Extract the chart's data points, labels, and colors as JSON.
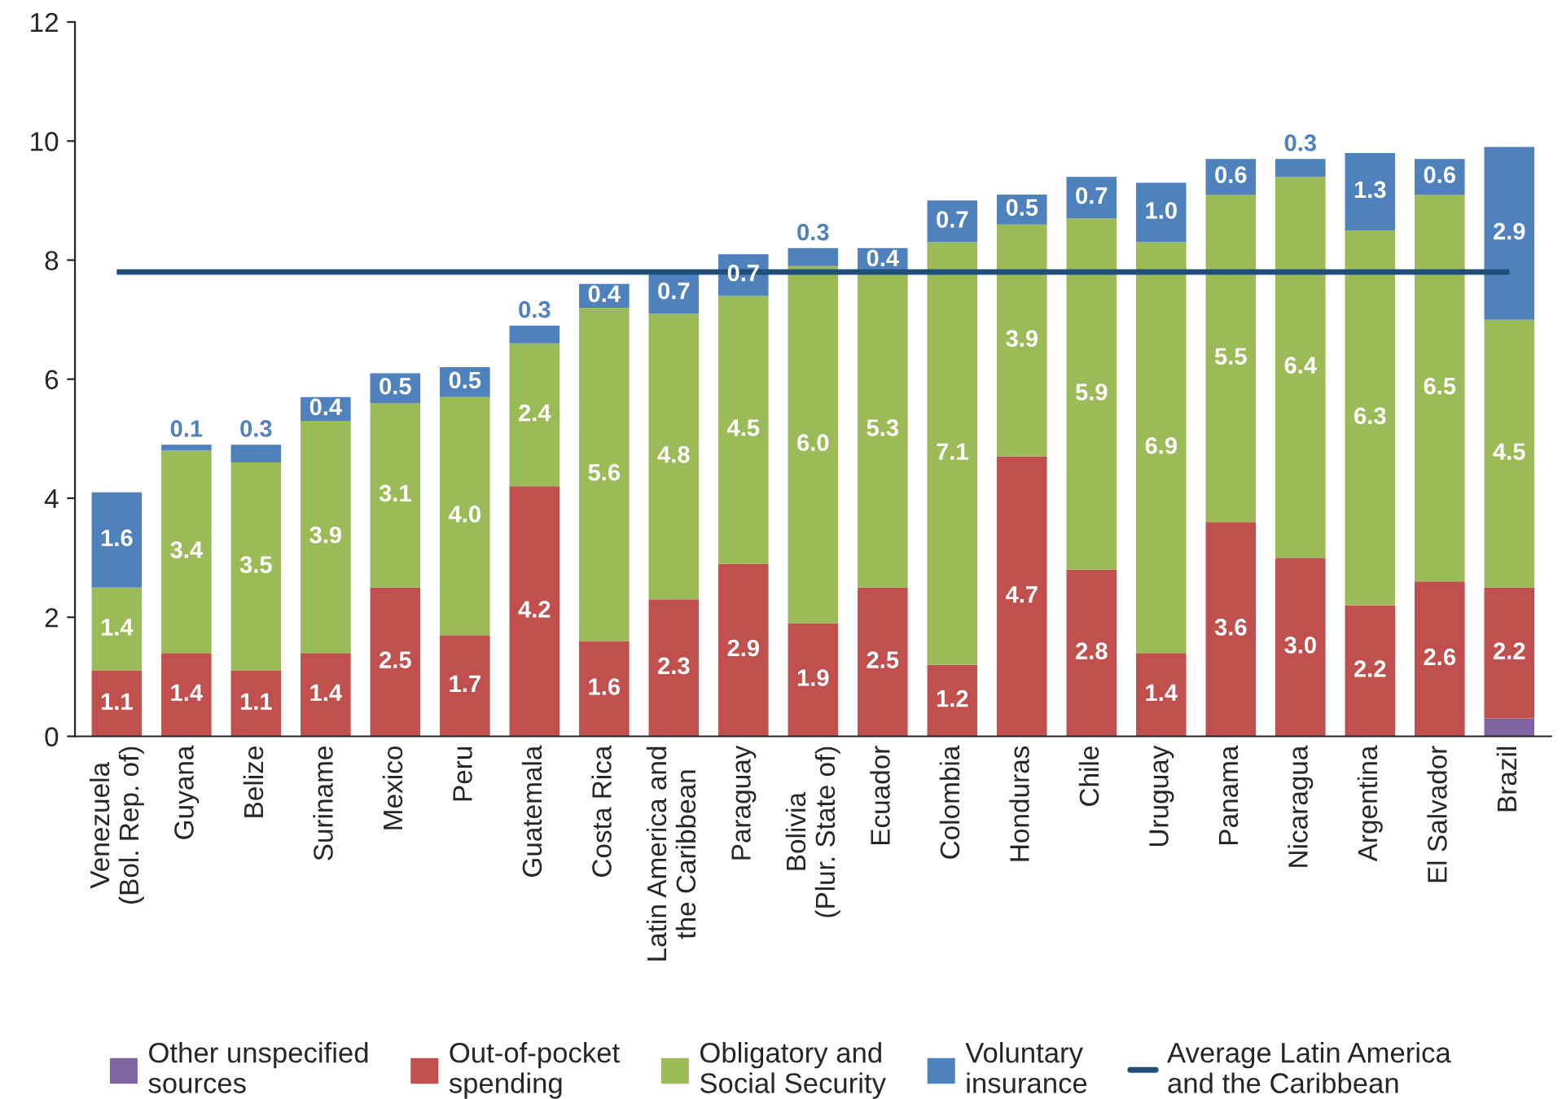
{
  "chart_data": {
    "type": "bar",
    "stacked": true,
    "categories": [
      "Venezuela\n(Bol. Rep. of)",
      "Guyana",
      "Belize",
      "Suriname",
      "Mexico",
      "Peru",
      "Guatemala",
      "Costa Rica",
      "Latin America and\nthe Caribbean",
      "Paraguay",
      "Bolivia\n(Plur. State of)",
      "Ecuador",
      "Colombia",
      "Honduras",
      "Chile",
      "Uruguay",
      "Panama",
      "Nicaragua",
      "Argentina",
      "El Salvador",
      "Brazil"
    ],
    "series": [
      {
        "name": "Other unspecified\nsources",
        "color": "#8064a2",
        "values": [
          null,
          null,
          null,
          null,
          null,
          null,
          null,
          null,
          null,
          null,
          null,
          null,
          null,
          null,
          null,
          null,
          null,
          null,
          null,
          null,
          0.3
        ],
        "value_labels": [
          null,
          null,
          null,
          null,
          null,
          null,
          null,
          null,
          null,
          null,
          null,
          null,
          null,
          null,
          null,
          null,
          null,
          null,
          null,
          null,
          null
        ]
      },
      {
        "name": "Out-of-pocket\nspending",
        "color": "#c0504d",
        "values": [
          1.1,
          1.4,
          1.1,
          1.4,
          2.5,
          1.7,
          4.2,
          1.6,
          2.3,
          2.9,
          1.9,
          2.5,
          1.2,
          4.7,
          2.8,
          1.4,
          3.6,
          3.0,
          2.2,
          2.6,
          2.2
        ],
        "value_labels": [
          "1.1",
          "1.4",
          "1.1",
          "1.4",
          "2.5",
          "1.7",
          "4.2",
          "1.6",
          "2.3",
          "2.9",
          "1.9",
          "2.5",
          "1.2",
          "4.7",
          "2.8",
          "1.4",
          "3.6",
          "3.0",
          "2.2",
          "2.6",
          "2.2"
        ]
      },
      {
        "name": "Obligatory and\nSocial Security",
        "color": "#9bbb59",
        "values": [
          1.4,
          3.4,
          3.5,
          3.9,
          3.1,
          4.0,
          2.4,
          5.6,
          4.8,
          4.5,
          6.0,
          5.3,
          7.1,
          3.9,
          5.9,
          6.9,
          5.5,
          6.4,
          6.3,
          6.5,
          4.5
        ],
        "value_labels": [
          "1.4",
          "3.4",
          "3.5",
          "3.9",
          "3.1",
          "4.0",
          "2.4",
          "5.6",
          "4.8",
          "4.5",
          "6.0",
          "5.3",
          "7.1",
          "3.9",
          "5.9",
          "6.9",
          "5.5",
          "6.4",
          "6.3",
          "6.5",
          "4.5"
        ]
      },
      {
        "name": "Voluntary\ninsurance",
        "color": "#4f81bd",
        "values": [
          1.6,
          0.1,
          0.3,
          0.4,
          0.5,
          0.5,
          0.3,
          0.4,
          0.7,
          0.7,
          0.3,
          0.4,
          0.7,
          0.5,
          0.7,
          1.0,
          0.6,
          0.3,
          1.3,
          0.6,
          2.9
        ],
        "value_labels": [
          "1.6",
          "0.1",
          "0.3",
          "0.4",
          "0.5",
          "0.5",
          "0.3",
          "0.4",
          "0.7",
          "0.7",
          "0.3",
          "0.4",
          "0.7",
          "0.5",
          "0.7",
          "1.0",
          "0.6",
          "0.3",
          "1.3",
          "0.6",
          "2.9"
        ]
      }
    ],
    "ref_lines": [
      {
        "axis": "y",
        "value": 7.8,
        "label": "Average Latin America\nand the Caribbean",
        "color": "#1f4e79",
        "line_style": "solid"
      }
    ],
    "ylim": [
      0,
      12
    ],
    "yticks": [
      0,
      2,
      4,
      6,
      8,
      10,
      12
    ],
    "grid": false,
    "legend": "bottom"
  }
}
